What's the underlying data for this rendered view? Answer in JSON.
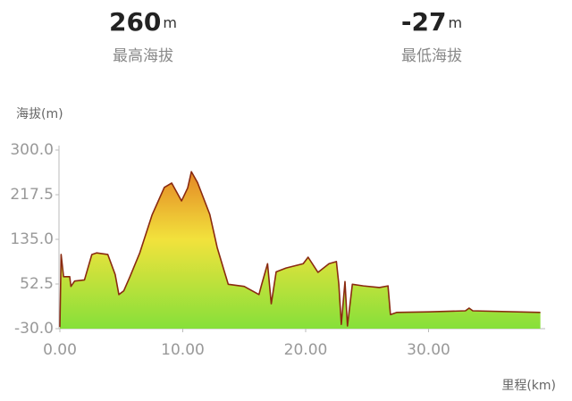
{
  "stats": [
    {
      "value": 260,
      "unit": "m",
      "label": "最高海拔"
    },
    {
      "value": -27,
      "unit": "m",
      "label": "最低海拔"
    }
  ],
  "chart_data": {
    "type": "area",
    "ylabel": "海拔(m)",
    "xlabel": "里程(km)",
    "x": [
      0,
      0.1,
      0.3,
      0.8,
      0.9,
      1.2,
      2.0,
      2.6,
      3.0,
      3.9,
      4.5,
      4.8,
      5.2,
      5.7,
      6.5,
      7.5,
      8.5,
      9.1,
      9.9,
      10.4,
      10.7,
      11.2,
      12.2,
      12.8,
      13.3,
      13.7,
      15.0,
      16.2,
      16.4,
      16.9,
      17.2,
      17.6,
      18.4,
      19.8,
      20.2,
      21.0,
      21.9,
      22.5,
      22.7,
      22.9,
      23.2,
      23.4,
      23.8,
      24.7,
      26.0,
      26.7,
      26.9,
      27.4,
      30.0,
      33.0,
      33.3,
      33.6,
      39.1
    ],
    "values": [
      -27,
      107,
      66,
      66,
      48,
      58,
      60,
      107,
      110,
      107,
      70,
      33,
      40,
      66,
      110,
      180,
      231,
      239,
      206,
      230,
      260,
      240,
      181,
      120,
      82,
      52,
      48,
      33,
      50,
      90,
      16,
      75,
      82,
      90,
      102,
      74,
      90,
      94,
      52,
      -22,
      57,
      -25,
      52,
      49,
      46,
      49,
      -4,
      0,
      1,
      3,
      8,
      3,
      0
    ],
    "line_color": "#8a2a10",
    "area_colors": [
      "#86e03a",
      "#f2e23c",
      "#e06a1e"
    ],
    "xlim": [
      0,
      39.2
    ],
    "ylim": [
      -30,
      300
    ],
    "xticks": [
      {
        "value": 0,
        "label": "0.00"
      },
      {
        "value": 10,
        "label": "10.00"
      },
      {
        "value": 20,
        "label": "20.00"
      },
      {
        "value": 30,
        "label": "30.00"
      }
    ],
    "yticks": [
      {
        "value": -30,
        "label": "-30.0"
      },
      {
        "value": 52.5,
        "label": "52.5"
      },
      {
        "value": 135,
        "label": "135.0"
      },
      {
        "value": 217.5,
        "label": "217.5"
      },
      {
        "value": 300,
        "label": "300.0"
      }
    ],
    "grid": false
  }
}
